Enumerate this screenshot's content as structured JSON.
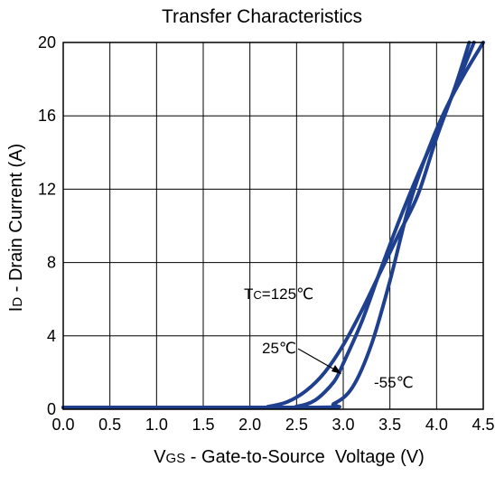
{
  "chart_data": {
    "type": "line",
    "title": "Transfer Characteristics",
    "xlabel_main": "V",
    "xlabel_sub": "GS",
    "xlabel_rest": " - Gate-to-Source  Voltage (V)",
    "ylabel_main": "I",
    "ylabel_sub": "D",
    "ylabel_rest": " - Drain Current (A)",
    "xlim": [
      0,
      4.5
    ],
    "ylim": [
      0,
      20
    ],
    "x_ticks": [
      "0.0",
      "0.5",
      "1.0",
      "1.5",
      "2.0",
      "2.5",
      "3.0",
      "3.5",
      "4.0",
      "4.5"
    ],
    "y_ticks": [
      "0",
      "4",
      "8",
      "12",
      "16",
      "20"
    ],
    "grid": true,
    "line_color": "#1f3f8f",
    "series": [
      {
        "label_main": "T",
        "label_sub": "C",
        "label_rest": "=125℃",
        "x": [
          0,
          2.0,
          2.2,
          2.4,
          2.6,
          2.8,
          3.0,
          3.2,
          3.4,
          3.6,
          3.8,
          4.0,
          4.2,
          4.35
        ],
        "y": [
          0.1,
          0.1,
          0.15,
          0.4,
          1.0,
          2.0,
          3.5,
          5.4,
          7.5,
          9.6,
          11.7,
          14.8,
          17.6,
          20
        ]
      },
      {
        "label_rest": "25℃",
        "x": [
          0,
          2.3,
          2.5,
          2.7,
          2.9,
          3.0,
          3.2,
          3.4,
          3.6,
          3.8,
          4.0,
          4.2,
          4.4
        ],
        "y": [
          0.1,
          0.1,
          0.15,
          0.5,
          1.5,
          2.5,
          4.8,
          7.6,
          10.3,
          12.8,
          15.1,
          17.5,
          20
        ]
      },
      {
        "label_rest": "-55℃",
        "x": [
          0,
          2.7,
          2.9,
          3.1,
          3.3,
          3.5,
          3.7,
          3.9,
          4.1,
          4.3,
          4.5
        ],
        "y": [
          0.1,
          0.1,
          0.3,
          1.2,
          3.5,
          7.0,
          11.0,
          14.0,
          16.4,
          18.3,
          20
        ]
      }
    ]
  }
}
